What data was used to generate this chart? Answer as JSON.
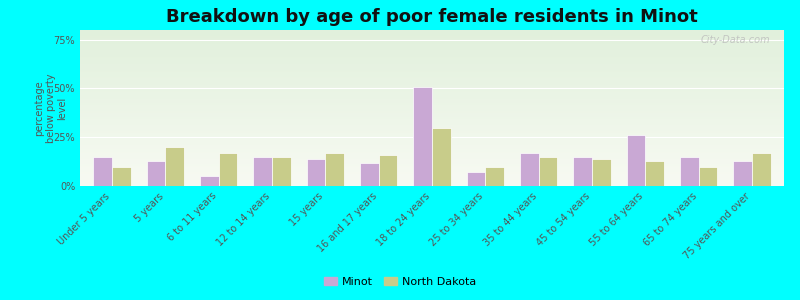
{
  "title": "Breakdown by age of poor female residents in Minot",
  "ylabel": "percentage\nbelow poverty\nlevel",
  "categories": [
    "Under 5 years",
    "5 years",
    "6 to 11 years",
    "12 to 14 years",
    "15 years",
    "16 and 17 years",
    "18 to 24 years",
    "25 to 34 years",
    "35 to 44 years",
    "45 to 54 years",
    "55 to 64 years",
    "65 to 74 years",
    "75 years and over"
  ],
  "minot_values": [
    15,
    13,
    5,
    15,
    14,
    12,
    51,
    7,
    17,
    15,
    26,
    15,
    13
  ],
  "nd_values": [
    10,
    20,
    17,
    15,
    17,
    16,
    30,
    10,
    15,
    14,
    13,
    10,
    17
  ],
  "minot_color": "#c9a8d4",
  "nd_color": "#c8cc8a",
  "outer_bg": "#00ffff",
  "ylim": [
    0,
    80
  ],
  "yticks": [
    0,
    25,
    50,
    75
  ],
  "ytick_labels": [
    "0%",
    "25%",
    "50%",
    "75%"
  ],
  "bar_width": 0.35,
  "title_fontsize": 13,
  "label_fontsize": 7,
  "ylabel_fontsize": 7,
  "legend_labels": [
    "Minot",
    "North Dakota"
  ],
  "watermark": "City-Data.com"
}
